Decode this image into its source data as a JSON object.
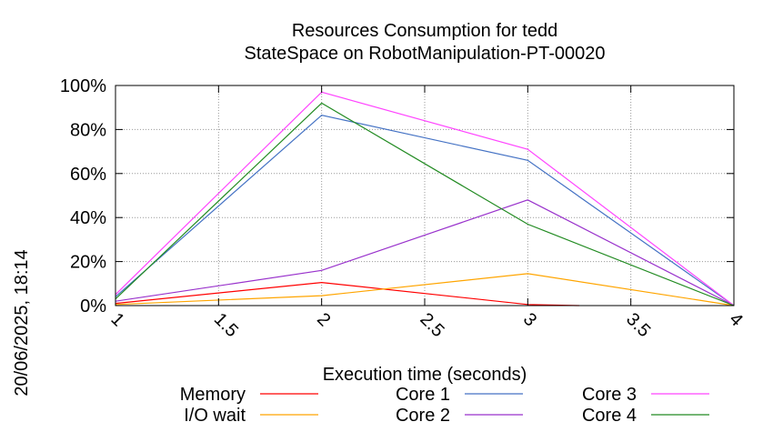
{
  "chart_data": {
    "type": "line",
    "title": "Resources Consumption for tedd",
    "subtitle": "StateSpace on RobotManipulation-PT-00020",
    "xlabel": "Execution time (seconds)",
    "ylabel": "",
    "side_label": "20/06/2025, 18:14",
    "xlim": [
      1,
      4
    ],
    "ylim": [
      0,
      100
    ],
    "xticks": [
      1,
      1.5,
      2,
      2.5,
      3,
      3.5,
      4
    ],
    "xtick_labels": [
      "1",
      "1.5",
      "2",
      "2.5",
      "3",
      "3.5",
      "4"
    ],
    "yticks": [
      0,
      20,
      40,
      60,
      80,
      100
    ],
    "ytick_labels": [
      "0%",
      "20%",
      "40%",
      "60%",
      "80%",
      "100%"
    ],
    "grid": true,
    "legend_position": "bottom",
    "series": [
      {
        "name": "Memory",
        "color": "#ff0000",
        "x": [
          1,
          2,
          3,
          3.25
        ],
        "y": [
          1,
          10.5,
          0.5,
          0
        ]
      },
      {
        "name": "I/O wait",
        "color": "#ffa500",
        "x": [
          1,
          2,
          3,
          4
        ],
        "y": [
          0.5,
          4.5,
          14.5,
          0
        ]
      },
      {
        "name": "Core 1",
        "color": "#4472c4",
        "x": [
          1,
          2,
          3,
          4
        ],
        "y": [
          4,
          86.5,
          66,
          0
        ]
      },
      {
        "name": "Core 2",
        "color": "#9932cc",
        "x": [
          1,
          2,
          3,
          4
        ],
        "y": [
          2,
          16,
          48,
          0
        ]
      },
      {
        "name": "Core 3",
        "color": "#ff44ff",
        "x": [
          1,
          2,
          3,
          4
        ],
        "y": [
          5,
          97,
          71,
          0
        ]
      },
      {
        "name": "Core 4",
        "color": "#228b22",
        "x": [
          1,
          2,
          3,
          4
        ],
        "y": [
          3,
          92,
          37,
          0
        ]
      }
    ]
  }
}
